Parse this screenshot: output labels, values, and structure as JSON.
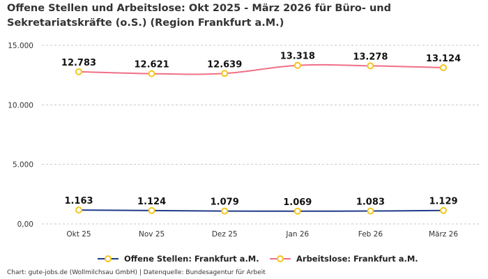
{
  "chart_data": {
    "type": "line",
    "title_line1": "Offene Stellen und Arbeitslose: Okt 2025 - März 2026 für Büro- und",
    "title_line2": "Sekretariatskräfte (o.S.) (Region Frankfurt a.M.)",
    "categories": [
      "Okt 25",
      "Nov 25",
      "Dez 25",
      "Jan 26",
      "Feb 26",
      "März 26"
    ],
    "ylim": [
      0,
      15000
    ],
    "yticks": [
      0,
      5000,
      10000,
      15000
    ],
    "ytick_labels": [
      "0,00",
      "5.000",
      "10.000",
      "15.000"
    ],
    "grid": "horizontal-dashed",
    "legend_position": "bottom",
    "series": [
      {
        "name": "Offene Stellen: Frankfurt a.M.",
        "values": [
          1163,
          1124,
          1079,
          1069,
          1083,
          1129
        ],
        "labels": [
          "1.163",
          "1.124",
          "1.079",
          "1.069",
          "1.083",
          "1.129"
        ],
        "color": "#1f3a8a"
      },
      {
        "name": "Arbeitslose: Frankfurt a.M.",
        "values": [
          12783,
          12621,
          12639,
          13318,
          13278,
          13124
        ],
        "labels": [
          "12.783",
          "12.621",
          "12.639",
          "13.318",
          "13.278",
          "13.124"
        ],
        "color": "#ef6f86"
      }
    ],
    "marker_color": "#f5c518",
    "source": "Chart: gute-jobs.de (Wollmilchsau GmbH) | Datenquelle: Bundesagentur für Arbeit"
  }
}
